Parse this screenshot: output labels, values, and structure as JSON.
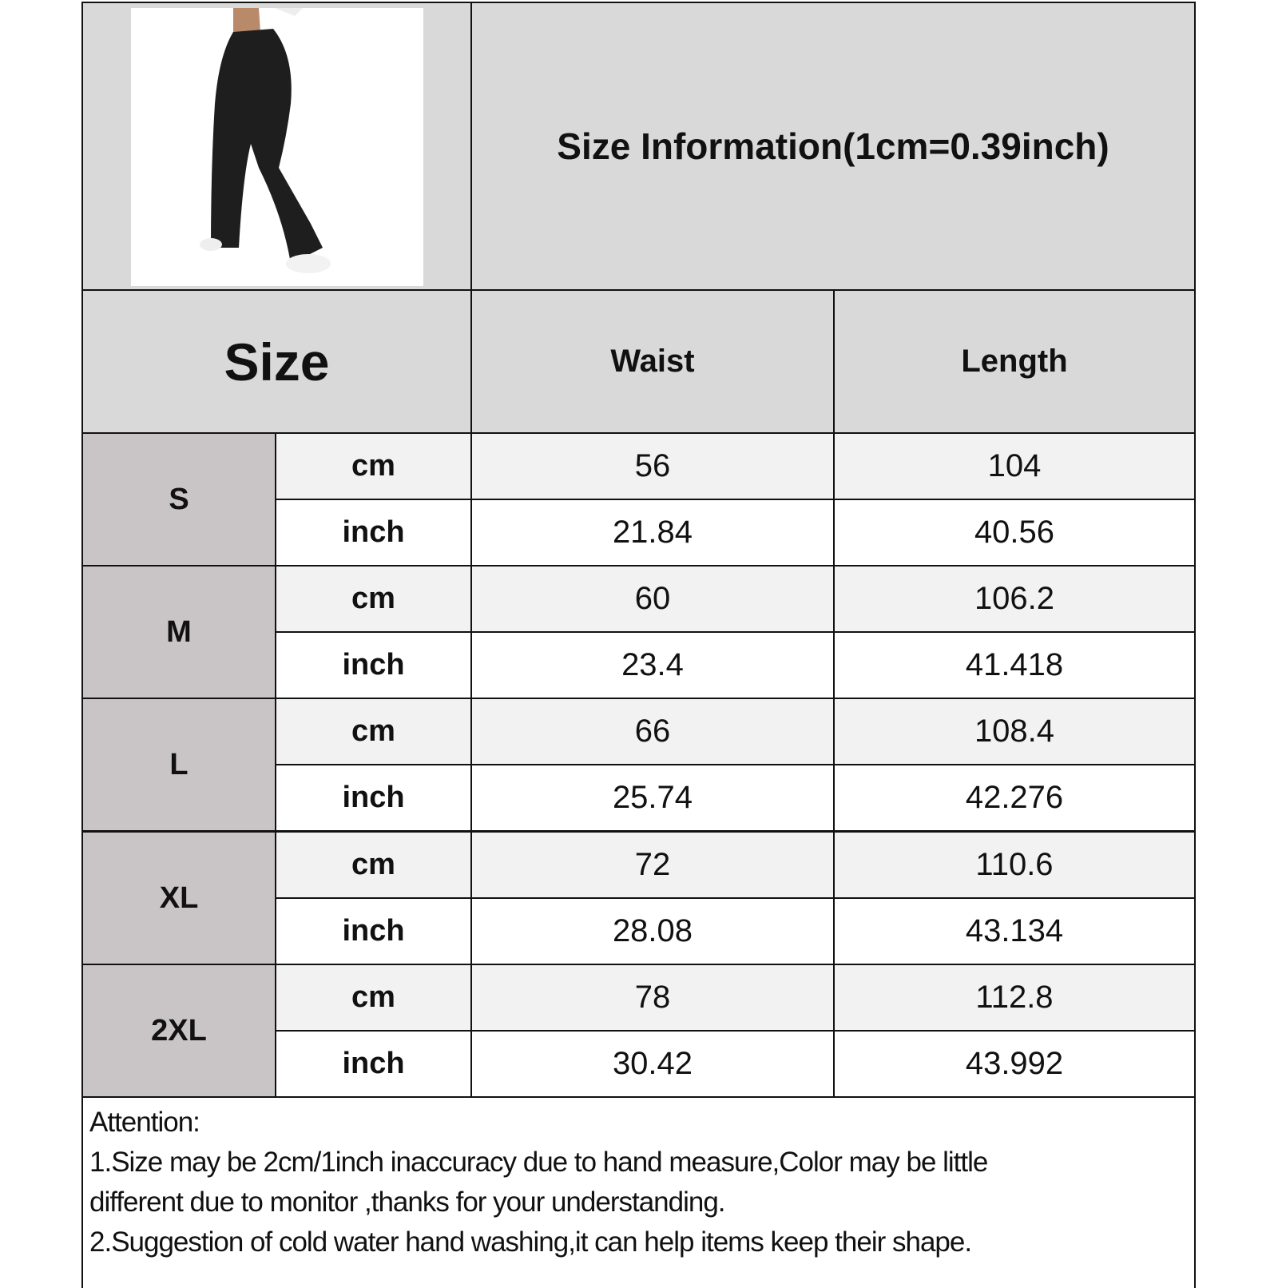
{
  "title": "Size Information(1cm=0.39inch)",
  "headers": {
    "size": "Size",
    "waist": "Waist",
    "length": "Length"
  },
  "rows": [
    {
      "size": "S",
      "cm_label": "cm",
      "inch_label": "inch",
      "waist_cm": "56",
      "length_cm": "104",
      "waist_inch": "21.84",
      "length_inch": "40.56"
    },
    {
      "size": "M",
      "cm_label": "cm",
      "inch_label": "inch",
      "waist_cm": "60",
      "length_cm": "106.2",
      "waist_inch": "23.4",
      "length_inch": "41.418"
    },
    {
      "size": "L",
      "cm_label": "cm",
      "inch_label": "inch",
      "waist_cm": "66",
      "length_cm": "108.4",
      "waist_inch": "25.74",
      "length_inch": "42.276"
    },
    {
      "size": "XL",
      "cm_label": "cm",
      "inch_label": "inch",
      "waist_cm": "72",
      "length_cm": "110.6",
      "waist_inch": "28.08",
      "length_inch": "43.134"
    },
    {
      "size": "2XL",
      "cm_label": "cm",
      "inch_label": "inch",
      "waist_cm": "78",
      "length_cm": "112.8",
      "waist_inch": "30.42",
      "length_inch": "43.992"
    }
  ],
  "attention": {
    "heading": "Attention:",
    "line1": "1.Size may be 2cm/1inch inaccuracy due to hand measure,Color may be little",
    "line2": "different due to monitor ,thanks for your understanding.",
    "line3": "2.Suggestion of cold water hand washing,it can help items keep their shape."
  },
  "colors": {
    "header_bg": "#d9d9d9",
    "size_bg": "#c9c5c6",
    "cm_row_bg": "#f2f2f2",
    "border": "#111111"
  }
}
